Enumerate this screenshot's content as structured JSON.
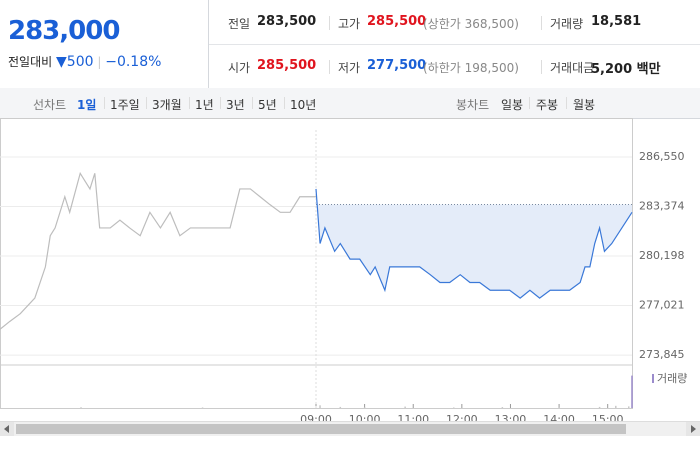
{
  "quote": {
    "price": "283,000",
    "change_label": "전일대비",
    "change_arrow": "▼",
    "change": "500",
    "change_pct": "−0.18%"
  },
  "stats": [
    [
      {
        "label": "전일",
        "value": "283,500",
        "color": "#222222"
      },
      {
        "label": "고가",
        "value": "285,500",
        "note": "(상한가 368,500)",
        "color": "#e0141e"
      },
      {
        "label": "거래량",
        "value": "18,581",
        "color": "#222222"
      }
    ],
    [
      {
        "label": "시가",
        "value": "285,500",
        "color": "#e0141e"
      },
      {
        "label": "저가",
        "value": "277,500",
        "note": "(하한가 198,500)",
        "color": "#1a5fd6"
      },
      {
        "label": "거래대금",
        "value": "5,200 백만",
        "color": "#222222"
      }
    ]
  ],
  "tabs": {
    "line_label": "선차트",
    "line": [
      "1일",
      "1주일",
      "3개월",
      "1년",
      "3년",
      "5년",
      "10년"
    ],
    "line_active": 0,
    "candle_label": "봉차트",
    "candle": [
      "일봉",
      "주봉",
      "월봉"
    ]
  },
  "chart_data": {
    "type": "line",
    "xlim": [
      0,
      780
    ],
    "ylim": [
      273400,
      287640
    ],
    "yticks": [
      {
        "value": 286550,
        "label": "286,550"
      },
      {
        "value": 283374,
        "label": "283,374"
      },
      {
        "value": 280198,
        "label": "280,198"
      },
      {
        "value": 277021,
        "label": "277,021"
      },
      {
        "value": 273845,
        "label": "273,845"
      }
    ],
    "xticks": [
      {
        "value": 390,
        "label": "09:00"
      },
      {
        "value": 450,
        "label": "10:00"
      },
      {
        "value": 510,
        "label": "11:00"
      },
      {
        "value": 570,
        "label": "12:00"
      },
      {
        "value": 630,
        "label": "13:00"
      },
      {
        "value": 690,
        "label": "14:00"
      },
      {
        "value": 750,
        "label": "15:00"
      }
    ],
    "grid": true,
    "baseline": 283500,
    "series": [
      {
        "color": "#bdbdbd",
        "x": [
          0,
          12,
          25,
          43,
          56,
          62,
          68,
          80,
          86,
          99,
          105,
          111,
          117,
          123,
          136,
          148,
          160,
          173,
          185,
          198,
          210,
          222,
          235,
          247,
          259,
          272,
          284,
          296,
          309,
          321,
          333,
          346,
          358,
          370,
          383,
          390
        ],
        "values": [
          275500,
          276000,
          276500,
          277500,
          279500,
          281500,
          282000,
          284000,
          283000,
          285500,
          285000,
          284500,
          285500,
          282000,
          282000,
          282500,
          282000,
          281500,
          283000,
          282000,
          283000,
          281500,
          282000,
          282000,
          282000,
          282000,
          282000,
          284500,
          284500,
          284000,
          283500,
          283000,
          283000,
          284000,
          284000,
          284000
        ]
      },
      {
        "color": "#3a78d8",
        "fill": "#e4ecf9",
        "x": [
          390,
          395,
          401,
          413,
          420,
          432,
          444,
          457,
          463,
          475,
          481,
          494,
          506,
          518,
          531,
          543,
          555,
          568,
          580,
          592,
          605,
          617,
          629,
          642,
          654,
          666,
          679,
          691,
          703,
          716,
          722,
          728,
          734,
          740,
          746,
          755,
          780
        ],
        "values": [
          284500,
          281000,
          282000,
          280500,
          281000,
          280000,
          280000,
          279000,
          279500,
          278000,
          279500,
          279500,
          279500,
          279500,
          279000,
          278500,
          278500,
          279000,
          278500,
          278500,
          278000,
          278000,
          278000,
          277500,
          278000,
          277500,
          278000,
          278000,
          278000,
          278500,
          279500,
          279500,
          281000,
          282000,
          280500,
          281000,
          283000
        ]
      }
    ],
    "volume": {
      "name": "거래량",
      "color": "#c8c8c8",
      "last_color": "#9b8ccc",
      "ylim": [
        0,
        2000
      ],
      "x": [
        100,
        250,
        395,
        420,
        450,
        500,
        560,
        620,
        690,
        740,
        760,
        776,
        780
      ],
      "values": [
        40,
        30,
        150,
        60,
        40,
        80,
        30,
        50,
        40,
        60,
        120,
        90,
        1800
      ]
    }
  }
}
